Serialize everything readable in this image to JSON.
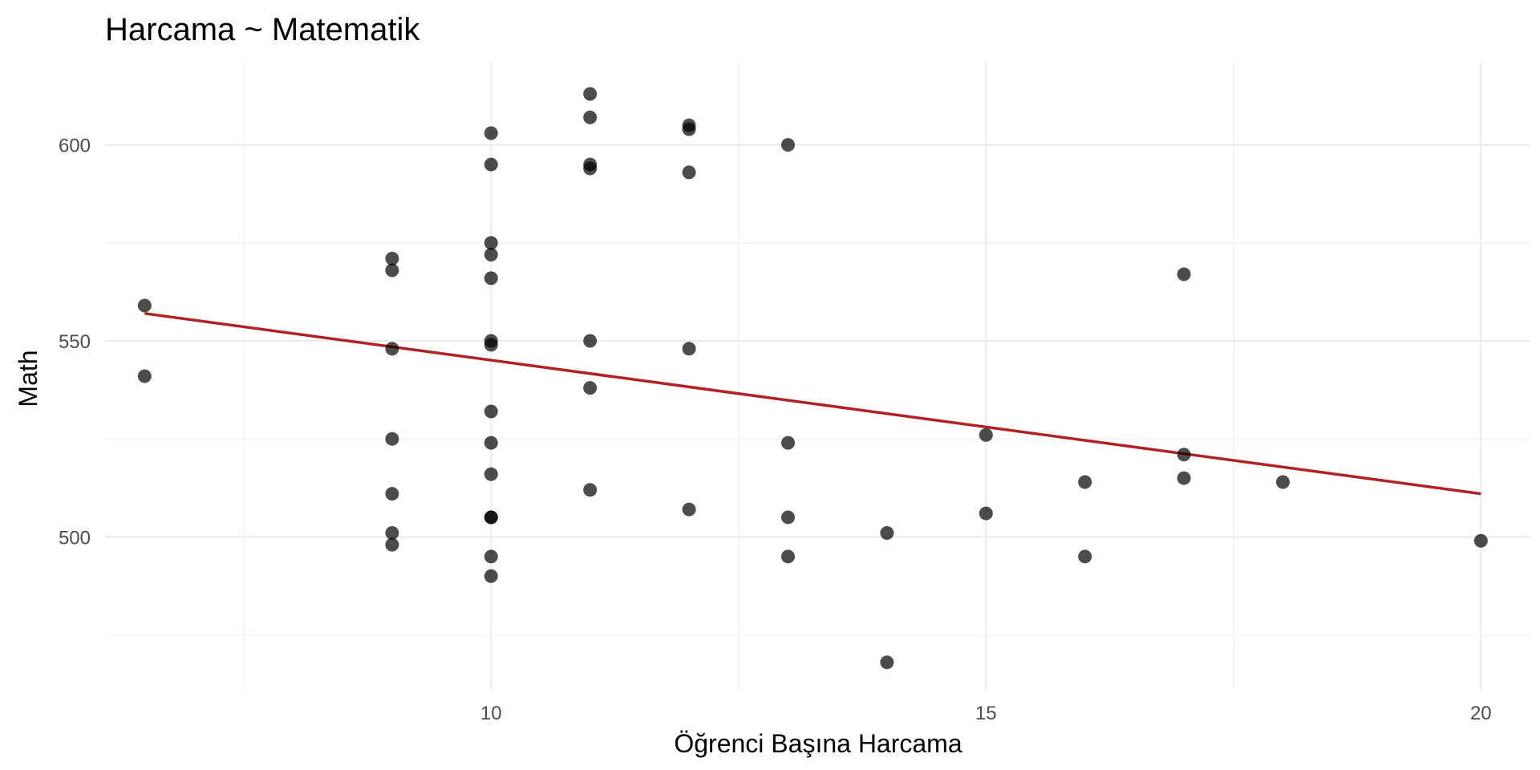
{
  "chart_data": {
    "type": "scatter",
    "title": "Harcama ~ Matematik",
    "xlabel": "Öğrenci Başına Harcama",
    "ylabel": "Math",
    "xlim": [
      6.1,
      20.5
    ],
    "ylim": [
      461,
      621
    ],
    "x_ticks": [
      10,
      15,
      20
    ],
    "x_minor": [
      7.5,
      12.5,
      17.5
    ],
    "y_ticks": [
      500,
      550,
      600
    ],
    "y_minor": [
      475,
      525,
      575
    ],
    "grid": true,
    "legend": "none",
    "point_color": "#000000",
    "line_color": "#b22222",
    "points": [
      {
        "x": 6.5,
        "y": 559
      },
      {
        "x": 6.5,
        "y": 541
      },
      {
        "x": 9,
        "y": 571
      },
      {
        "x": 9,
        "y": 568
      },
      {
        "x": 9,
        "y": 548
      },
      {
        "x": 9,
        "y": 525
      },
      {
        "x": 9,
        "y": 511
      },
      {
        "x": 9,
        "y": 501
      },
      {
        "x": 9,
        "y": 498
      },
      {
        "x": 10,
        "y": 603
      },
      {
        "x": 10,
        "y": 595
      },
      {
        "x": 10,
        "y": 575
      },
      {
        "x": 10,
        "y": 572
      },
      {
        "x": 10,
        "y": 566
      },
      {
        "x": 10,
        "y": 550
      },
      {
        "x": 10,
        "y": 549
      },
      {
        "x": 10,
        "y": 532
      },
      {
        "x": 10,
        "y": 524
      },
      {
        "x": 10,
        "y": 516
      },
      {
        "x": 10,
        "y": 505
      },
      {
        "x": 10,
        "y": 505
      },
      {
        "x": 10,
        "y": 495
      },
      {
        "x": 10,
        "y": 490
      },
      {
        "x": 11,
        "y": 613
      },
      {
        "x": 11,
        "y": 607
      },
      {
        "x": 11,
        "y": 595
      },
      {
        "x": 11,
        "y": 594
      },
      {
        "x": 11,
        "y": 550
      },
      {
        "x": 11,
        "y": 538
      },
      {
        "x": 11,
        "y": 512
      },
      {
        "x": 12,
        "y": 605
      },
      {
        "x": 12,
        "y": 604
      },
      {
        "x": 12,
        "y": 593
      },
      {
        "x": 12,
        "y": 548
      },
      {
        "x": 12,
        "y": 507
      },
      {
        "x": 13,
        "y": 600
      },
      {
        "x": 13,
        "y": 524
      },
      {
        "x": 13,
        "y": 505
      },
      {
        "x": 13,
        "y": 495
      },
      {
        "x": 14,
        "y": 501
      },
      {
        "x": 14,
        "y": 468
      },
      {
        "x": 15,
        "y": 526
      },
      {
        "x": 15,
        "y": 506
      },
      {
        "x": 16,
        "y": 514
      },
      {
        "x": 16,
        "y": 495
      },
      {
        "x": 17,
        "y": 567
      },
      {
        "x": 17,
        "y": 521
      },
      {
        "x": 17,
        "y": 515
      },
      {
        "x": 18,
        "y": 514
      },
      {
        "x": 20,
        "y": 499
      }
    ],
    "fit_line": {
      "x": [
        6.5,
        20
      ],
      "y": [
        557,
        511
      ]
    }
  }
}
